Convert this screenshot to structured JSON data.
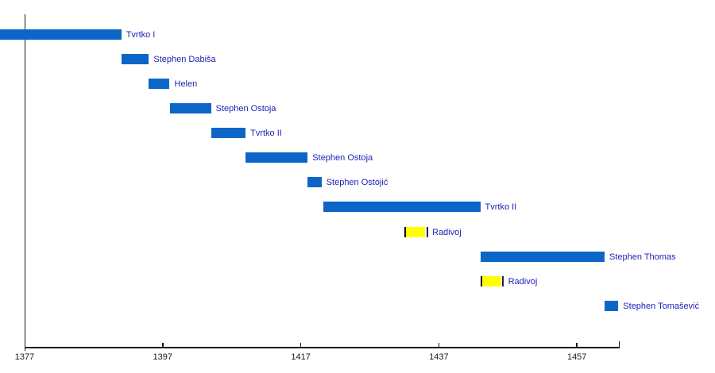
{
  "page": {
    "background": "#ffffff"
  },
  "chart_data": {
    "type": "bar",
    "variant": "horizontal-gantt-timeline",
    "title": "",
    "xlabel": "",
    "ylabel": "",
    "grid": false,
    "legend": false,
    "x_axis": {
      "ticks": [
        1377,
        1397,
        1417,
        1437,
        1457
      ],
      "tick_labels": [
        "1377",
        "1397",
        "1417",
        "1437",
        "1457"
      ],
      "x_min_visible": 1373.4,
      "x_max_visible": 1463.3
    },
    "rows": [
      {
        "label": "Tvrtko I",
        "from": 1373.4,
        "to": 1391,
        "color": "blue",
        "clipped_start": true
      },
      {
        "label": "Stephen Dabiša",
        "from": 1391,
        "to": 1395,
        "color": "blue"
      },
      {
        "label": "Helen",
        "from": 1395,
        "to": 1398,
        "color": "blue"
      },
      {
        "label": "Stephen Ostoja",
        "from": 1398,
        "to": 1404,
        "color": "blue"
      },
      {
        "label": "Tvrtko II",
        "from": 1404,
        "to": 1409,
        "color": "blue"
      },
      {
        "label": "Stephen Ostoja",
        "from": 1409,
        "to": 1418,
        "color": "blue"
      },
      {
        "label": "Stephen Ostojić",
        "from": 1418,
        "to": 1420,
        "color": "blue"
      },
      {
        "label": "Tvrtko II",
        "from": 1420.3,
        "to": 1443,
        "color": "blue"
      },
      {
        "label": "Radivoj",
        "from": 1432,
        "to": 1435,
        "color": "yellow"
      },
      {
        "label": "Stephen Thomas",
        "from": 1443,
        "to": 1461,
        "color": "blue"
      },
      {
        "label": "Radivoj",
        "from": 1443,
        "to": 1446,
        "color": "yellow"
      },
      {
        "label": "Stephen Tomašević",
        "from": 1461,
        "to": 1463,
        "color": "blue"
      }
    ],
    "colors": {
      "bar_blue": "#0b66c8",
      "bar_yellow": "#ffff00",
      "bar_edge_dark": "#101010",
      "bar_edge_navy": "#1a1a70",
      "label_text": "#1e1eb4",
      "axis": "#1a1a1a"
    }
  }
}
